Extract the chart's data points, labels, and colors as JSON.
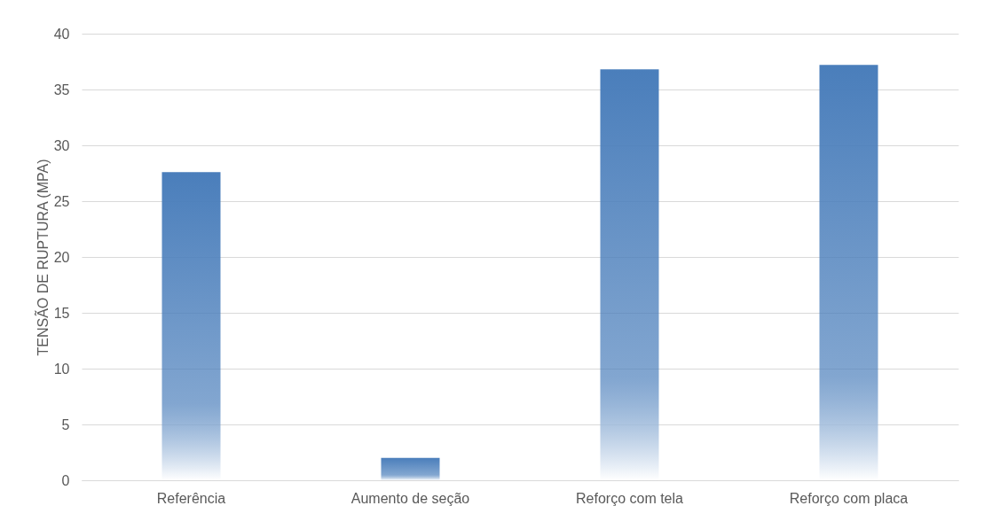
{
  "chart_data": {
    "type": "bar",
    "ylabel": "TENSÃO DE RUPTURA (MPA)",
    "categories": [
      "Referência",
      "Aumento de seção",
      "Reforço com tela",
      "Reforço com placa"
    ],
    "values": [
      27.6,
      2.0,
      36.8,
      37.2
    ],
    "color": "#4a7ebb",
    "ylim": [
      0,
      40
    ],
    "yticks": [
      0,
      5,
      10,
      15,
      20,
      25,
      30,
      35,
      40
    ],
    "grid": "y"
  }
}
